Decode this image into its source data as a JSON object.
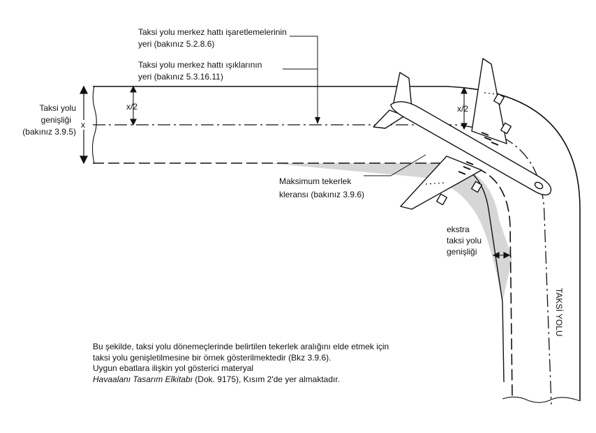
{
  "labels": {
    "centerline_marking_1": "Taksi yolu merkez hattı  işaretlemelerinin",
    "centerline_marking_2": "yeri (bakınız 5.2.8.6)",
    "centerline_lights_1": "Taksi yolu merkez hattı ışıklarının",
    "centerline_lights_2": "yeri (bakınız 5.3.16.11)",
    "width_1": "Taksi yolu",
    "width_2": "genişliği",
    "width_3": "(bakınız 3.9.5)",
    "x": "x",
    "half_x_left": "x/2",
    "half_x_right": "x/2",
    "clearance_1": "Maksimum tekerlek",
    "clearance_2": "kleransı  (bakınız 3.9.6)",
    "extra_1": "ekstra",
    "extra_2": "taksi yolu",
    "extra_3": "genişliği",
    "taxiway": "TAKSİ YOLU"
  },
  "note": {
    "line1": "Bu şekilde, taksi yolu dönemeçlerinde belirtilen tekerlek aralığını elde etmek için",
    "line2": "taksi yolu genişletilmesine bir örnek gösterilmektedir (Bkz 3.9.6).",
    "line3": "Uygun ebatlara ilişkin yol gösterici materyal",
    "line4_italic": "Havaalanı Tasarım Elkitabı",
    "line4_rest": "  (Dok. 9175), Kısım 2'de yer almaktadır."
  },
  "colors": {
    "stroke": "#111111",
    "fillet": "#d6d6d6"
  }
}
